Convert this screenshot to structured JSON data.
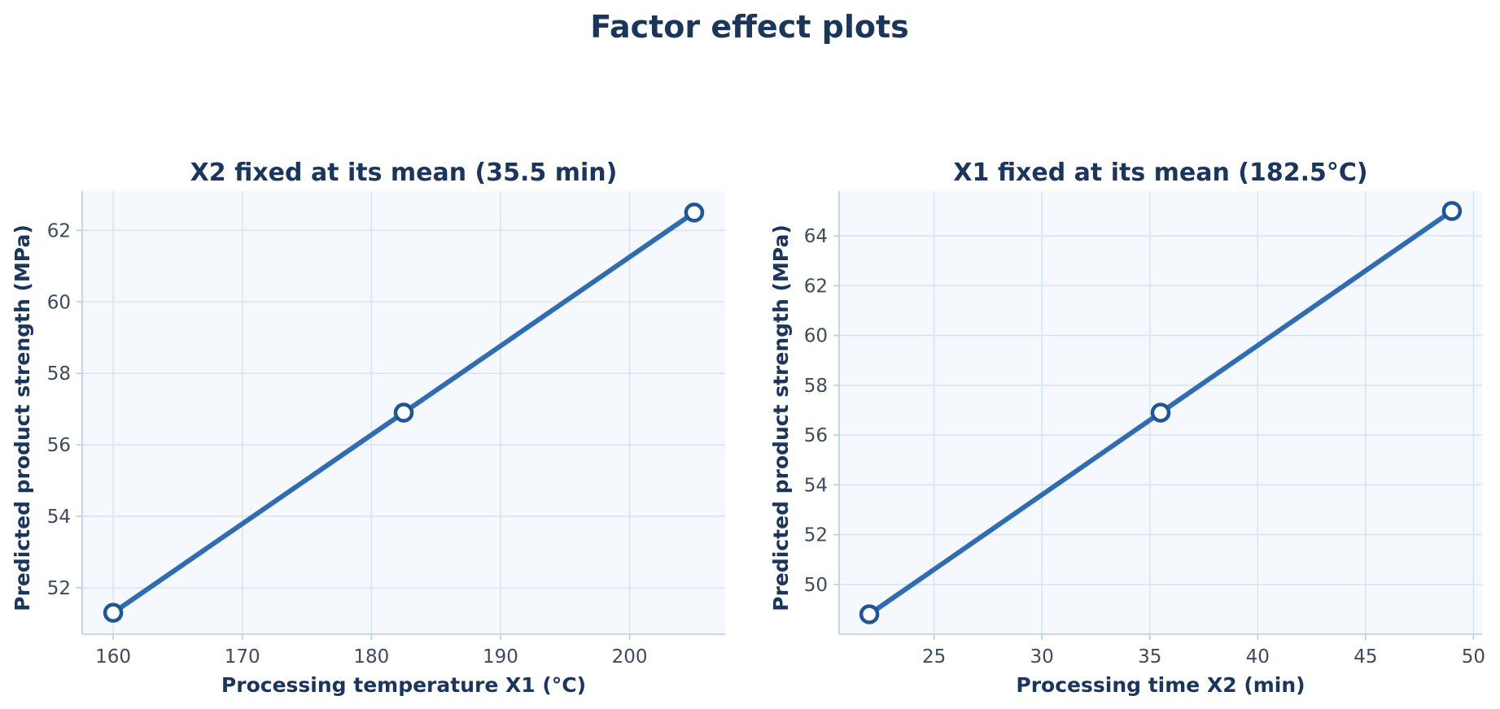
{
  "figure": {
    "title": "Factor effect plots"
  },
  "colors": {
    "line": "#2e6db4",
    "marker_edge": "#1f5696",
    "marker_face": "#ffffff"
  },
  "chart_data": [
    {
      "type": "line",
      "title": "X2 fixed at its mean (35.5 min)",
      "xlabel": "Processing temperature X1 (°C)",
      "ylabel": "Predicted product strength (MPa)",
      "x": [
        160,
        182.5,
        205
      ],
      "series": [
        {
          "values": [
            51.3,
            56.9,
            62.5
          ]
        }
      ],
      "xlim": [
        157.6,
        207.4
      ],
      "ylim": [
        50.7,
        63.1
      ],
      "xticks": [
        160,
        170,
        180,
        190,
        200
      ],
      "yticks": [
        52,
        54,
        56,
        58,
        60,
        62
      ],
      "grid": true,
      "markers": "circle"
    },
    {
      "type": "line",
      "title": "X1 fixed at its mean (182.5°C)",
      "xlabel": "Processing time X2 (min)",
      "ylabel": "Predicted product strength (MPa)",
      "x": [
        22,
        35.5,
        49
      ],
      "series": [
        {
          "values": [
            48.8,
            56.9,
            65.0
          ]
        }
      ],
      "xlim": [
        20.6,
        50.4
      ],
      "ylim": [
        48.0,
        65.8
      ],
      "xticks": [
        25,
        30,
        35,
        40,
        45,
        50
      ],
      "yticks": [
        50,
        52,
        54,
        56,
        58,
        60,
        62,
        64
      ],
      "grid": true,
      "markers": "circle"
    }
  ]
}
